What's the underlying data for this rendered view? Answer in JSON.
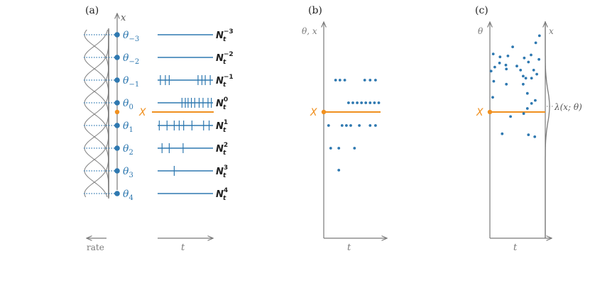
{
  "colors": {
    "blue": "#2e78b0",
    "orange": "#f0901f",
    "gray": "#7a7a7a",
    "dark": "#222222"
  },
  "panel_a": {
    "label": "(a)",
    "axis_label": "x",
    "stim_label": "X",
    "rate_label": "rate",
    "time_label": "t",
    "neurons": [
      {
        "sym": "θ",
        "sub": "−3",
        "n": "N",
        "nsub": "t",
        "nsup": "−3",
        "spikes": []
      },
      {
        "sym": "θ",
        "sub": "−2",
        "n": "N",
        "nsub": "t",
        "nsup": "−2",
        "spikes": []
      },
      {
        "sym": "θ",
        "sub": "−1",
        "n": "N",
        "nsub": "t",
        "nsup": "−1",
        "spikes": [
          0.05,
          0.14,
          0.21,
          0.73,
          0.8,
          0.86,
          0.95
        ]
      },
      {
        "sym": "θ",
        "sub": "0",
        "n": "N",
        "nsub": "t",
        "nsup": "0",
        "spikes": [
          0.44,
          0.5,
          0.55,
          0.61,
          0.67,
          0.75,
          0.82,
          0.91,
          0.97
        ]
      },
      {
        "sym": "θ",
        "sub": "1",
        "n": "N",
        "nsub": "t",
        "nsup": "1",
        "spikes": [
          0.03,
          0.17,
          0.3,
          0.39,
          0.47,
          0.62,
          0.83,
          0.93
        ]
      },
      {
        "sym": "θ",
        "sub": "2",
        "n": "N",
        "nsub": "t",
        "nsup": "2",
        "spikes": [
          0.08,
          0.21,
          0.46
        ]
      },
      {
        "sym": "θ",
        "sub": "3",
        "n": "N",
        "nsub": "t",
        "nsup": "3",
        "spikes": [
          0.3
        ]
      },
      {
        "sym": "θ",
        "sub": "4",
        "n": "N",
        "nsub": "t",
        "nsup": "4",
        "spikes": []
      }
    ]
  },
  "panel_b": {
    "label": "(b)",
    "ylabel": "θ, x",
    "xlabel": "t",
    "stim_label": "X",
    "points": [
      [
        0.18,
        6
      ],
      [
        0.26,
        6
      ],
      [
        0.35,
        6
      ],
      [
        0.72,
        6
      ],
      [
        0.82,
        6
      ],
      [
        0.92,
        6
      ],
      [
        0.42,
        5
      ],
      [
        0.5,
        5
      ],
      [
        0.58,
        5
      ],
      [
        0.66,
        5
      ],
      [
        0.74,
        5
      ],
      [
        0.82,
        5
      ],
      [
        0.9,
        5
      ],
      [
        0.98,
        5
      ],
      [
        0.05,
        3
      ],
      [
        0.3,
        3
      ],
      [
        0.38,
        3
      ],
      [
        0.46,
        3
      ],
      [
        0.62,
        3
      ],
      [
        0.82,
        3
      ],
      [
        0.92,
        3
      ],
      [
        0.09,
        2
      ],
      [
        0.24,
        2
      ],
      [
        0.53,
        2
      ],
      [
        0.24,
        1
      ]
    ]
  },
  "panel_c": {
    "label": "(c)",
    "ylabel": "θ",
    "xaxis_label": "x",
    "xlabel": "t",
    "stim_label": "X",
    "lambda_label": "λ(x; θ)",
    "points": [
      [
        0.93,
        6.95
      ],
      [
        0.86,
        6.6
      ],
      [
        0.42,
        6.4
      ],
      [
        0.77,
        6.0
      ],
      [
        0.05,
        6.05
      ],
      [
        0.18,
        5.9
      ],
      [
        0.33,
        5.95
      ],
      [
        0.92,
        5.78
      ],
      [
        0.64,
        5.85
      ],
      [
        0.72,
        5.65
      ],
      [
        0.17,
        5.6
      ],
      [
        0.29,
        5.5
      ],
      [
        0.5,
        5.45
      ],
      [
        0.08,
        5.4
      ],
      [
        0.3,
        5.3
      ],
      [
        0.82,
        5.25
      ],
      [
        0.57,
        5.25
      ],
      [
        0.01,
        5.2
      ],
      [
        0.88,
        5.05
      ],
      [
        0.62,
        4.95
      ],
      [
        0.78,
        4.85
      ],
      [
        0.67,
        4.85
      ],
      [
        0.06,
        4.7
      ],
      [
        0.3,
        4.55
      ],
      [
        0.62,
        4.55
      ],
      [
        0.7,
        4.1
      ],
      [
        0.04,
        3.9
      ],
      [
        0.85,
        3.75
      ],
      [
        0.78,
        3.6
      ],
      [
        0.7,
        3.35
      ],
      [
        0.38,
        2.95
      ],
      [
        0.63,
        3.1
      ],
      [
        0.22,
        2.1
      ],
      [
        0.72,
        2.05
      ],
      [
        0.84,
        1.95
      ]
    ]
  }
}
